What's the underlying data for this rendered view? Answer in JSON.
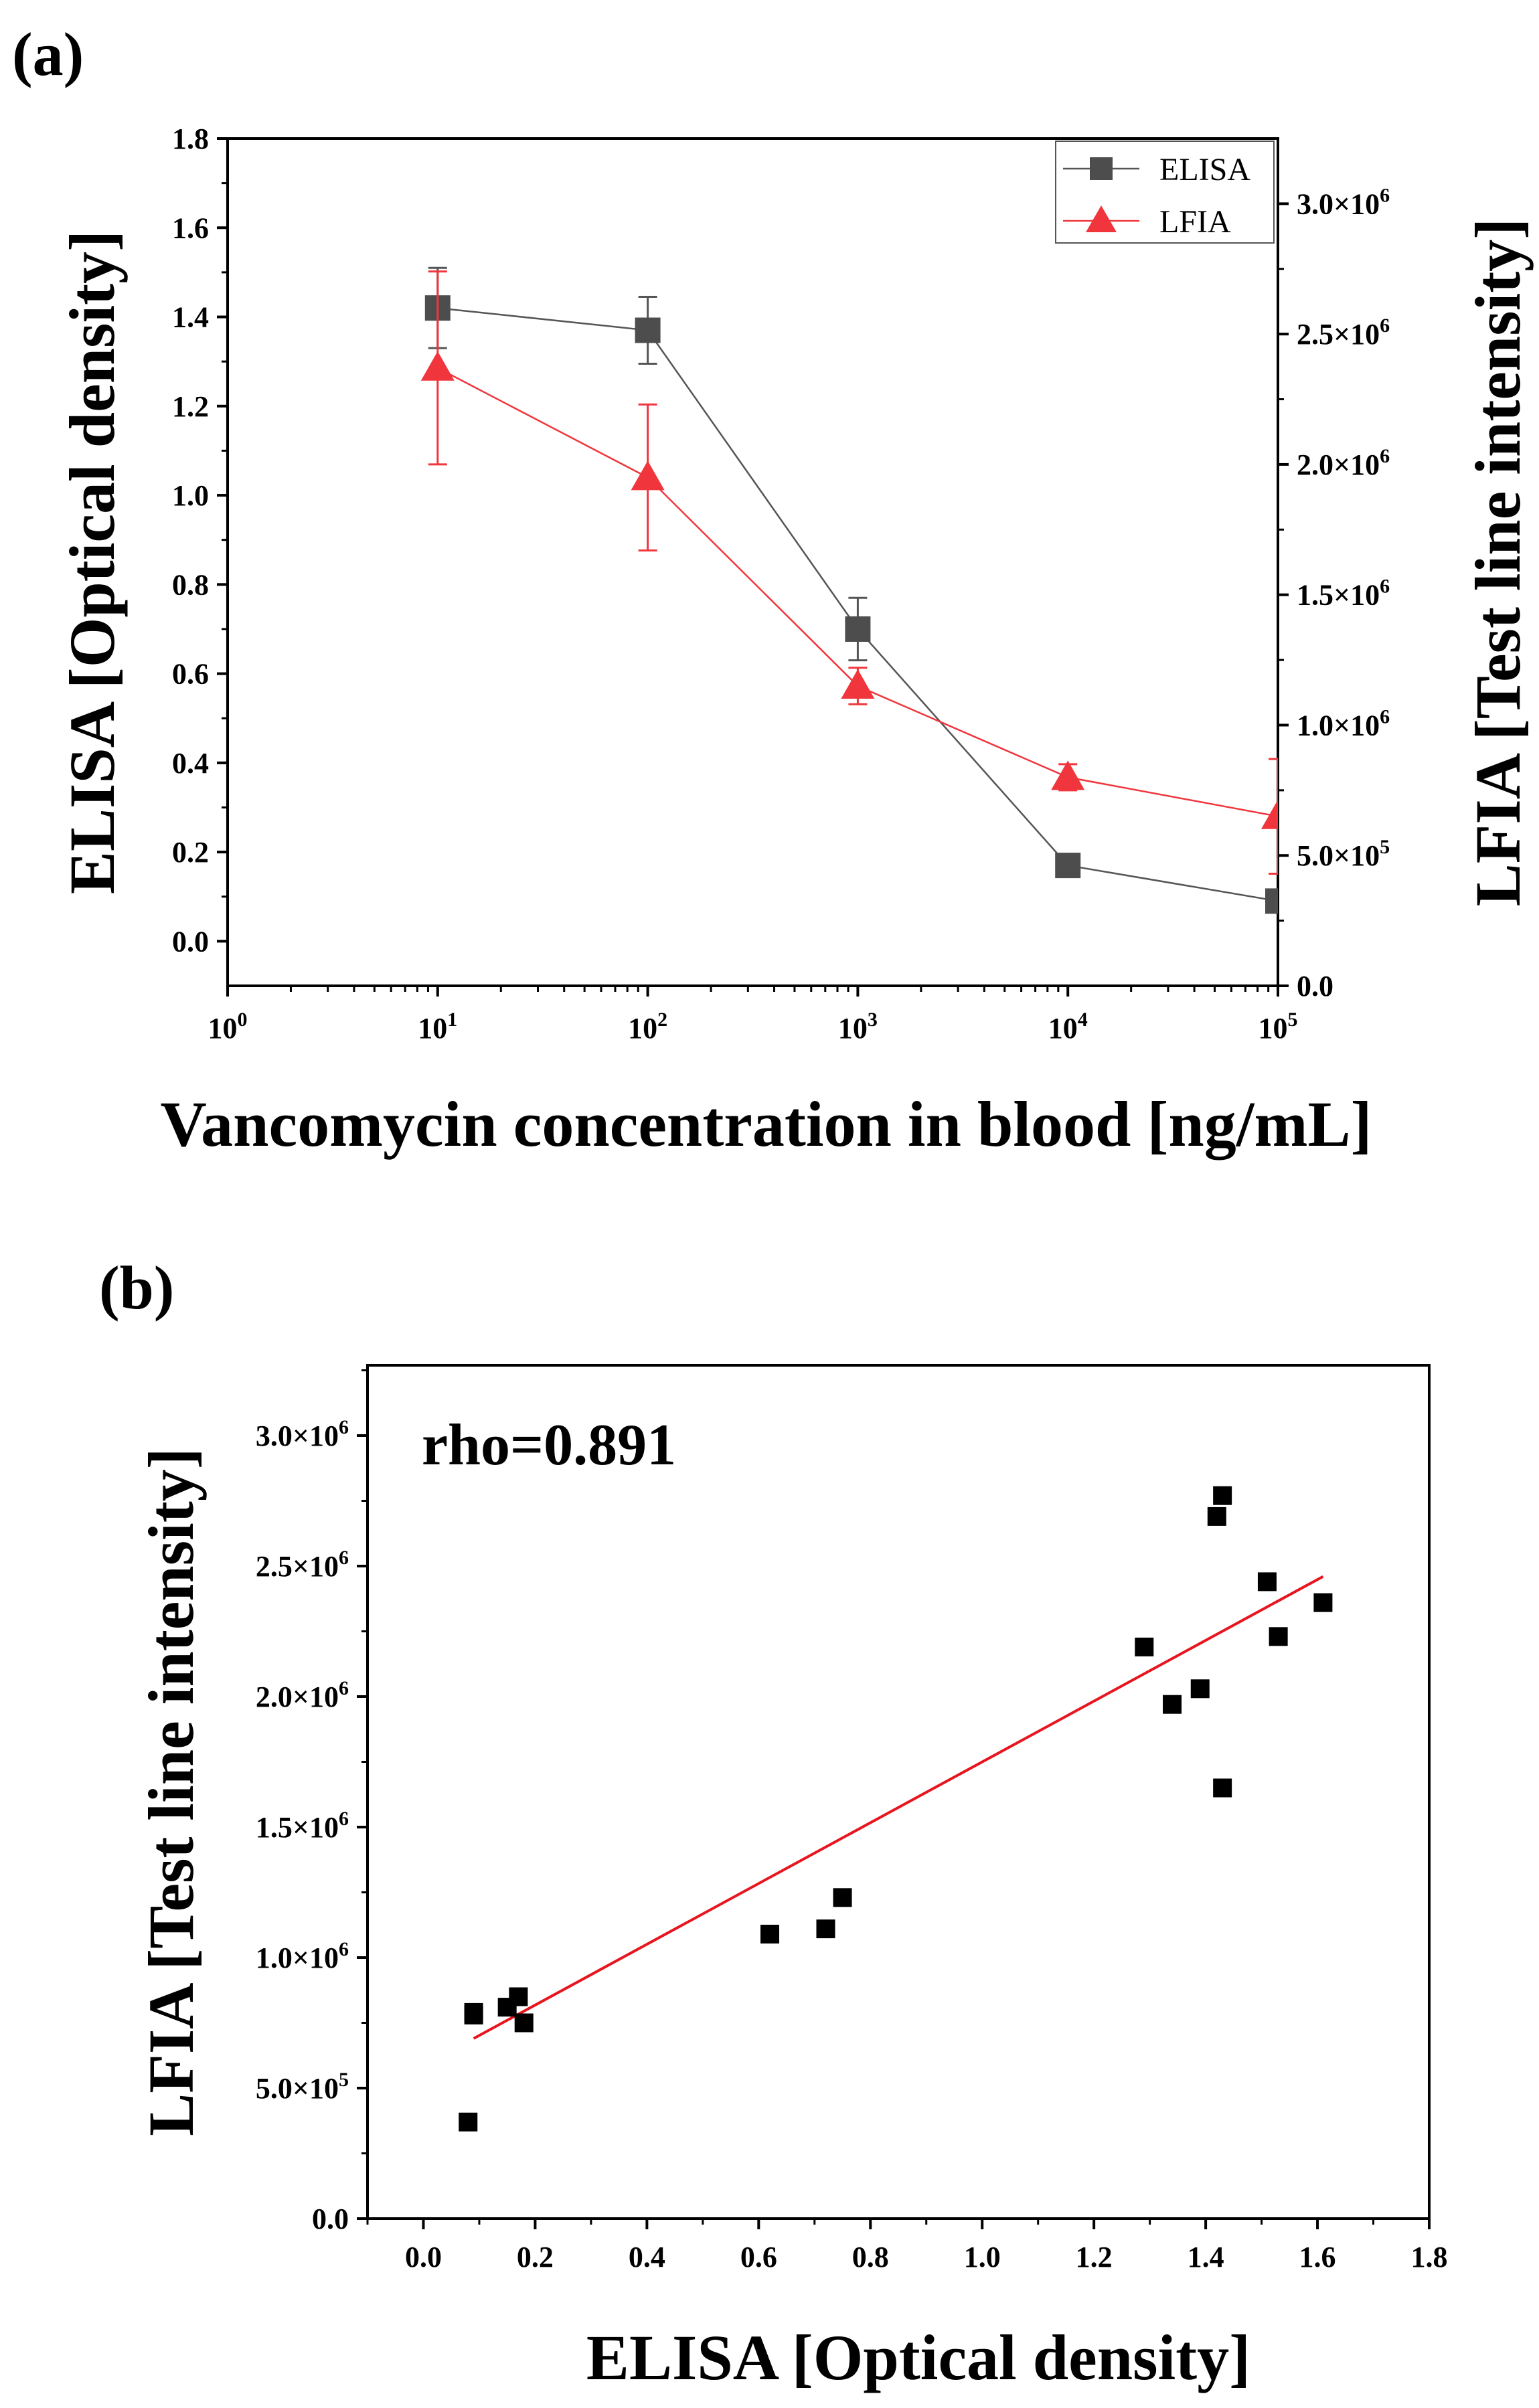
{
  "panels": {
    "a_label": "(a)",
    "b_label": "(b)"
  },
  "chart_data": [
    {
      "type": "line",
      "panel": "(a)",
      "xlabel": "Vancomycin concentration in blood [ng/mL]",
      "ylabel_left": "ELISA [Optical density]",
      "ylabel_right": "LFIA [Test line intensity]",
      "xscale": "log",
      "xlim": [
        1,
        100000
      ],
      "x_ticks": [
        {
          "base": "10",
          "exp": "0"
        },
        {
          "base": "10",
          "exp": "1"
        },
        {
          "base": "10",
          "exp": "2"
        },
        {
          "base": "10",
          "exp": "3"
        },
        {
          "base": "10",
          "exp": "4"
        },
        {
          "base": "10",
          "exp": "5"
        }
      ],
      "ylim_left": [
        -0.1,
        1.8
      ],
      "y_ticks_left": [
        "0.0",
        "0.2",
        "0.4",
        "0.6",
        "0.8",
        "1.0",
        "1.2",
        "1.4",
        "1.6",
        "1.8"
      ],
      "ylim_right": [
        0,
        3250000
      ],
      "y_ticks_right": [
        {
          "value": 0,
          "label": "0.0",
          "exp": ""
        },
        {
          "value": 500000,
          "label": "5.0×10",
          "exp": "5"
        },
        {
          "value": 1000000,
          "label": "1.0×10",
          "exp": "6"
        },
        {
          "value": 1500000,
          "label": "1.5×10",
          "exp": "6"
        },
        {
          "value": 2000000,
          "label": "2.0×10",
          "exp": "6"
        },
        {
          "value": 2500000,
          "label": "2.5×10",
          "exp": "6"
        },
        {
          "value": 3000000,
          "label": "3.0×10",
          "exp": "6"
        }
      ],
      "legend_position": "top-right",
      "series": [
        {
          "name": "ELISA",
          "axis": "left",
          "marker": "square",
          "color": "#4d4d4d",
          "line_color": "#555555",
          "x": [
            10,
            100,
            1000,
            10000,
            100000
          ],
          "y": [
            1.42,
            1.37,
            0.7,
            0.17,
            0.09
          ],
          "err": [
            0.09,
            0.075,
            0.07,
            0.0,
            0.0
          ]
        },
        {
          "name": "LFIA",
          "axis": "right",
          "marker": "triangle",
          "color": "#f0363c",
          "line_color": "#f0363c",
          "x": [
            10,
            100,
            1000,
            10000,
            100000
          ],
          "y": [
            2370000,
            1950000,
            1150000,
            800000,
            650000
          ],
          "err": [
            370000,
            280000,
            70000,
            50000,
            220000
          ]
        }
      ]
    },
    {
      "type": "scatter",
      "panel": "(b)",
      "xlabel": "ELISA [Optical density]",
      "ylabel": "LFIA [Test line intensity]",
      "xlim": [
        -0.1,
        1.8
      ],
      "x_ticks": [
        "0.0",
        "0.2",
        "0.4",
        "0.6",
        "0.8",
        "1.0",
        "1.2",
        "1.4",
        "1.6",
        "1.8"
      ],
      "ylim": [
        0,
        3000000
      ],
      "y_ticks": [
        {
          "value": 0,
          "label": "0.0",
          "exp": ""
        },
        {
          "value": 500000,
          "label": "5.0×10",
          "exp": "5"
        },
        {
          "value": 1000000,
          "label": "1.0×10",
          "exp": "6"
        },
        {
          "value": 1500000,
          "label": "1.5×10",
          "exp": "6"
        },
        {
          "value": 2000000,
          "label": "2.0×10",
          "exp": "6"
        },
        {
          "value": 2500000,
          "label": "2.5×10",
          "exp": "6"
        },
        {
          "value": 3000000,
          "label": "3.0×10",
          "exp": "6"
        }
      ],
      "annotation": "rho=0.891",
      "marker_color": "#000000",
      "fit_color": "#e8141e",
      "points": {
        "x": [
          0.08,
          0.09,
          0.09,
          0.15,
          0.17,
          0.18,
          0.62,
          0.72,
          0.75,
          1.29,
          1.34,
          1.39,
          1.42,
          1.43,
          1.43,
          1.51,
          1.53,
          1.61
        ],
        "y": [
          370000,
          790000,
          780000,
          810000,
          850000,
          750000,
          1090000,
          1110000,
          1230000,
          2190000,
          1970000,
          2030000,
          2690000,
          2770000,
          1650000,
          2440000,
          2230000,
          2360000
        ]
      },
      "fit_line": {
        "x": [
          0.09,
          1.61
        ],
        "y": [
          690000,
          2460000
        ]
      }
    }
  ]
}
